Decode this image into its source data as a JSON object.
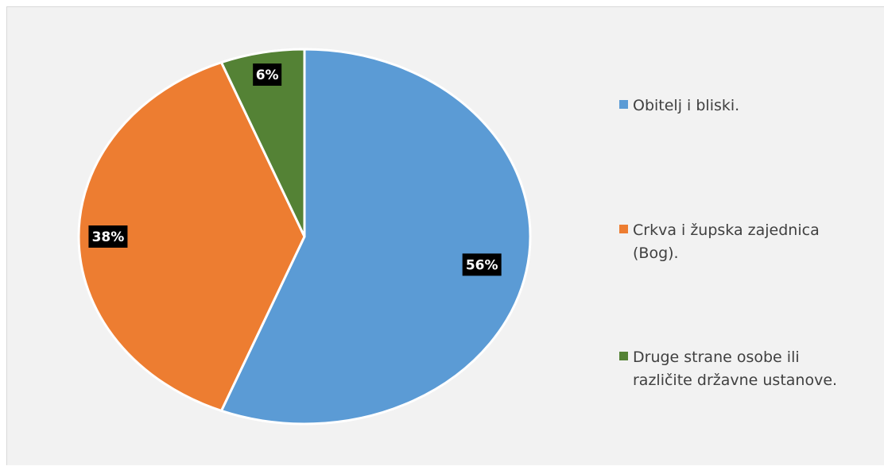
{
  "chart_data": {
    "type": "pie",
    "categories": [
      "Obitelj i bliski.",
      "Crkva i župska zajednica (Bog).",
      "Druge strane osobe ili različite državne ustanove."
    ],
    "values": [
      56,
      38,
      6
    ],
    "data_labels": [
      "56%",
      "38%",
      "6%"
    ],
    "colors": [
      "#5b9bd5",
      "#ed7d31",
      "#548235"
    ],
    "legend_placement": "right",
    "start_angle_deg": 0,
    "direction": "clockwise"
  }
}
